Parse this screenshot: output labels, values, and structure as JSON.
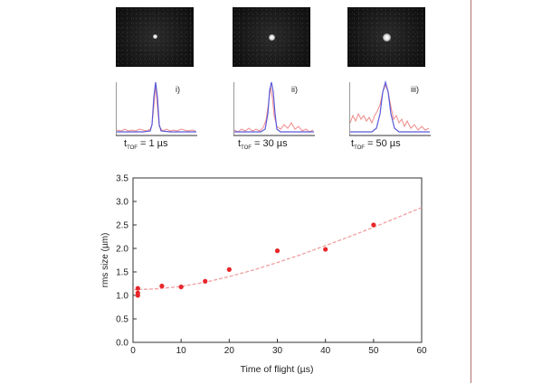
{
  "panels": [
    {
      "roman": "i)",
      "tof_label": "1 µs",
      "spot_brightness": 0.35
    },
    {
      "roman": "ii)",
      "tof_label": "30 µs",
      "spot_brightness": 0.7
    },
    {
      "roman": "iii)",
      "tof_label": "50 µs",
      "spot_brightness": 0.85
    }
  ],
  "tof_prefix": "t",
  "tof_sub": "TOF",
  "tof_eq": " = ",
  "chart_data": {
    "type": "scatter",
    "xlabel": "Time of flight (µs)",
    "ylabel": "rms size (µm)",
    "xlim": [
      0,
      60
    ],
    "ylim": [
      0,
      3.5
    ],
    "xticks": [
      "0",
      "10",
      "20",
      "30",
      "40",
      "50",
      "60"
    ],
    "yticks": [
      "0.0",
      "0.5",
      "1.0",
      "1.5",
      "2.0",
      "2.5",
      "3.0",
      "3.5"
    ],
    "points": {
      "x": [
        1,
        1,
        1,
        6,
        10,
        15,
        20,
        30,
        40,
        50
      ],
      "y": [
        1.15,
        1.05,
        1.0,
        1.2,
        1.18,
        1.3,
        1.55,
        1.95,
        1.98,
        2.5
      ]
    },
    "fit_curve": {
      "x": [
        0,
        5,
        10,
        15,
        20,
        25,
        30,
        35,
        40,
        45,
        50,
        55,
        60
      ],
      "y": [
        1.12,
        1.14,
        1.19,
        1.28,
        1.4,
        1.54,
        1.7,
        1.87,
        2.06,
        2.25,
        2.45,
        2.66,
        2.87
      ]
    },
    "grid": false,
    "colors": {
      "marker": "#e8262a",
      "fit": "#f0a0a0"
    }
  },
  "colors": {
    "profile": "#5a5ad8",
    "fit_profile": "#f08a8a",
    "axis": "#333333",
    "divider": "#b07070"
  }
}
